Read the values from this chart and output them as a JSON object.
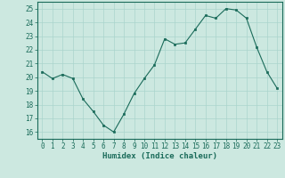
{
  "x": [
    0,
    1,
    2,
    3,
    4,
    5,
    6,
    7,
    8,
    9,
    10,
    11,
    12,
    13,
    14,
    15,
    16,
    17,
    18,
    19,
    20,
    21,
    22,
    23
  ],
  "y": [
    20.4,
    19.9,
    20.2,
    19.9,
    18.4,
    17.5,
    16.5,
    16.0,
    17.3,
    18.8,
    19.9,
    20.9,
    22.8,
    22.4,
    22.5,
    23.5,
    24.5,
    24.3,
    25.0,
    24.9,
    24.3,
    22.2,
    20.4,
    19.2
  ],
  "xlabel": "Humidex (Indice chaleur)",
  "ylim": [
    15.5,
    25.5
  ],
  "xlim": [
    -0.5,
    23.5
  ],
  "yticks": [
    16,
    17,
    18,
    19,
    20,
    21,
    22,
    23,
    24,
    25
  ],
  "xticks": [
    0,
    1,
    2,
    3,
    4,
    5,
    6,
    7,
    8,
    9,
    10,
    11,
    12,
    13,
    14,
    15,
    16,
    17,
    18,
    19,
    20,
    21,
    22,
    23
  ],
  "line_color": "#1a6b5a",
  "marker_color": "#1a6b5a",
  "bg_color": "#cce8e0",
  "grid_color": "#aad4cc",
  "tick_label_fontsize": 5.5,
  "xlabel_fontsize": 6.5
}
